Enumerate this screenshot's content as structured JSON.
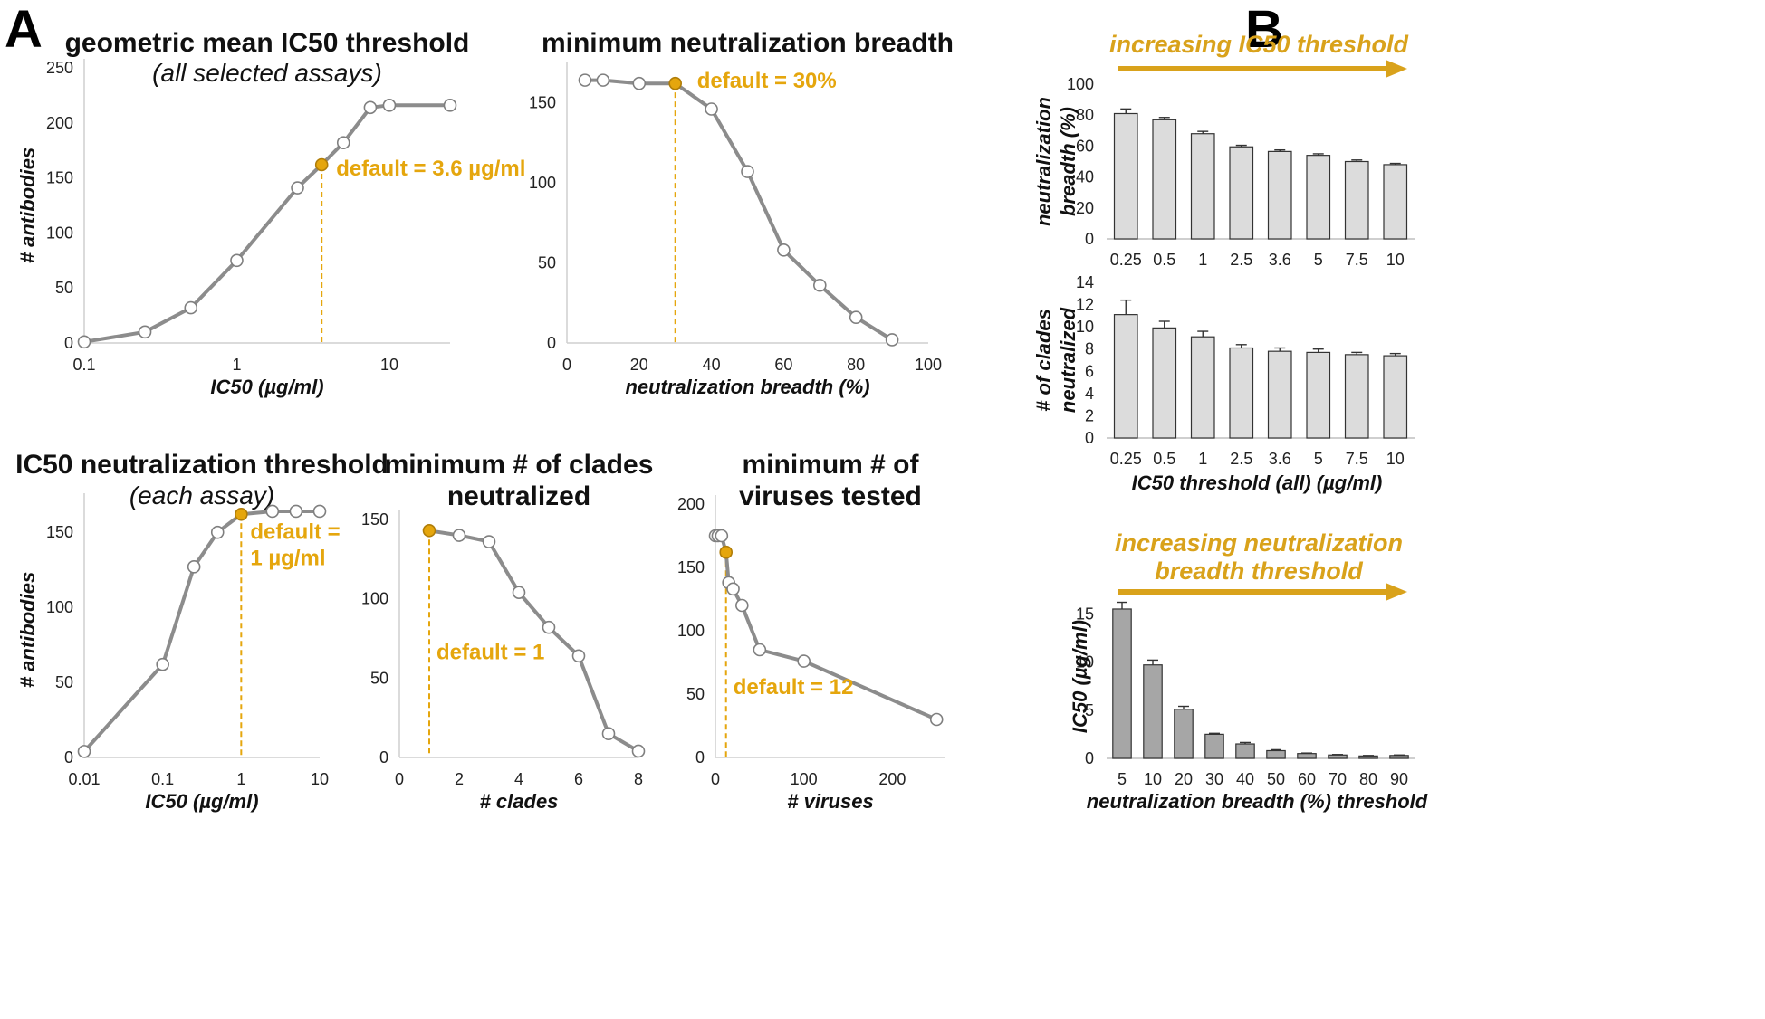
{
  "panel_labels": {
    "a": "A",
    "b": "B"
  },
  "colors": {
    "line": "#8c8c8c",
    "default": "#E5A60D",
    "bar_light": "#dcdcdc",
    "bar_dark": "#a6a6a6",
    "arrow": "#D9A21B"
  },
  "chart_data": [
    {
      "id": "a1",
      "type": "line",
      "scale": "log",
      "title": "geometric mean IC50 threshold",
      "subtitle": "(all selected assays)",
      "xlabel": "IC50 (µg/ml)",
      "ylabel": "# antibodies",
      "xlim": [
        0.1,
        25
      ],
      "ylim": [
        0,
        250
      ],
      "xticks": [
        0.1,
        1,
        10
      ],
      "xtick_labels": [
        "0.1",
        "1",
        "10"
      ],
      "yticks": [
        0,
        50,
        100,
        150,
        200,
        250
      ],
      "ytick_labels": [
        "0",
        "50",
        "100",
        "150",
        "200",
        "250"
      ],
      "x": [
        0.1,
        0.25,
        0.5,
        1,
        2.5,
        3.6,
        5,
        7.5,
        10,
        25
      ],
      "y": [
        1,
        10,
        32,
        75,
        141,
        162,
        182,
        214,
        216,
        216
      ],
      "default_index": 5,
      "default_label": "default = 3.6 µg/ml"
    },
    {
      "id": "a2",
      "type": "line",
      "scale": "linear",
      "title": "minimum neutralization breadth",
      "xlabel": "neutralization breadth (%)",
      "ylabel": "",
      "xlim": [
        0,
        100
      ],
      "ylim": [
        0,
        170
      ],
      "xticks": [
        0,
        20,
        40,
        60,
        80,
        100
      ],
      "xtick_labels": [
        "0",
        "20",
        "40",
        "60",
        "80",
        "100"
      ],
      "yticks": [
        0,
        50,
        100,
        150
      ],
      "ytick_labels": [
        "0",
        "50",
        "100",
        "150"
      ],
      "x": [
        5,
        10,
        20,
        30,
        40,
        50,
        60,
        70,
        80,
        90
      ],
      "y": [
        164,
        164,
        162,
        162,
        146,
        107,
        58,
        36,
        16,
        2
      ],
      "default_index": 3,
      "default_label": "default = 30%"
    },
    {
      "id": "a3",
      "type": "line",
      "scale": "log",
      "title": "IC50 neutralization threshold",
      "subtitle": "(each assay)",
      "xlabel": "IC50 (µg/ml)",
      "ylabel": "# antibodies",
      "xlim": [
        0.01,
        10
      ],
      "ylim": [
        0,
        170
      ],
      "xticks": [
        0.01,
        0.1,
        1,
        10
      ],
      "xtick_labels": [
        "0.01",
        "0.1",
        "1",
        "10"
      ],
      "yticks": [
        0,
        50,
        100,
        150
      ],
      "ytick_labels": [
        "0",
        "50",
        "100",
        "150"
      ],
      "x": [
        0.01,
        0.1,
        0.25,
        0.5,
        1,
        2.5,
        5,
        10
      ],
      "y": [
        4,
        62,
        127,
        150,
        162,
        164,
        164,
        164
      ],
      "default_index": 4,
      "default_label_lines": [
        "default =",
        "1 µg/ml"
      ]
    },
    {
      "id": "a4",
      "type": "line",
      "scale": "linear",
      "title_lines": [
        "minimum # of clades",
        "neutralized"
      ],
      "xlabel": "# clades",
      "ylabel": "",
      "xlim": [
        0,
        8
      ],
      "ylim": [
        0,
        150
      ],
      "xticks": [
        0,
        2,
        4,
        6,
        8
      ],
      "xtick_labels": [
        "0",
        "2",
        "4",
        "6",
        "8"
      ],
      "yticks": [
        0,
        50,
        100,
        150
      ],
      "ytick_labels": [
        "0",
        "50",
        "100",
        "150"
      ],
      "x": [
        1,
        2,
        3,
        4,
        5,
        6,
        7,
        8
      ],
      "y": [
        143,
        140,
        136,
        104,
        82,
        64,
        15,
        4
      ],
      "default_index": 0,
      "default_label": "default = 1"
    },
    {
      "id": "a5",
      "type": "line",
      "scale": "linear",
      "title_lines": [
        "minimum # of",
        "viruses tested"
      ],
      "xlabel": "# viruses",
      "ylabel": "",
      "xlim": [
        0,
        260
      ],
      "ylim": [
        0,
        200
      ],
      "xticks": [
        0,
        100,
        200
      ],
      "xtick_labels": [
        "0",
        "100",
        "200"
      ],
      "yticks": [
        0,
        50,
        100,
        150,
        200
      ],
      "ytick_labels": [
        "0",
        "50",
        "100",
        "150",
        "200"
      ],
      "x": [
        0,
        3,
        7,
        12,
        15,
        20,
        30,
        50,
        100,
        250
      ],
      "y": [
        175,
        175,
        175,
        162,
        138,
        133,
        120,
        85,
        76,
        30
      ],
      "default_index": 3,
      "default_label": "default = 12"
    },
    {
      "id": "b1",
      "type": "bar",
      "arrow_label": "increasing IC50 threshold",
      "ylabel_lines": [
        "neutralization",
        "breadth (%)"
      ],
      "categories": [
        "0.25",
        "0.5",
        "1",
        "2.5",
        "3.6",
        "5",
        "7.5",
        "10"
      ],
      "values": [
        81,
        77,
        68,
        59.5,
        56.5,
        54,
        50,
        48
      ],
      "errors": [
        3,
        1.5,
        1.5,
        1,
        1,
        1,
        1,
        0.8
      ],
      "ylim": [
        0,
        100
      ],
      "yticks": [
        0,
        20,
        40,
        60,
        80,
        100
      ],
      "ytick_labels": [
        "0",
        "20",
        "40",
        "60",
        "80",
        "100"
      ]
    },
    {
      "id": "b2",
      "type": "bar",
      "ylabel_lines": [
        "# of clades",
        "neutralized"
      ],
      "xlabel": "IC50 threshold (all) (µg/ml)",
      "categories": [
        "0.25",
        "0.5",
        "1",
        "2.5",
        "3.6",
        "5",
        "7.5",
        "10"
      ],
      "values": [
        11.1,
        9.9,
        9.1,
        8.1,
        7.8,
        7.7,
        7.5,
        7.4
      ],
      "errors": [
        1.3,
        0.6,
        0.5,
        0.3,
        0.3,
        0.3,
        0.2,
        0.2
      ],
      "ylim": [
        0,
        14
      ],
      "yticks": [
        0,
        2,
        4,
        6,
        8,
        10,
        12,
        14
      ],
      "ytick_labels": [
        "0",
        "2",
        "4",
        "6",
        "8",
        "10",
        "12",
        "14"
      ]
    },
    {
      "id": "b3",
      "type": "bar",
      "arrow_label_lines": [
        "increasing neutralization",
        "breadth threshold"
      ],
      "ylabel": "IC50 (µg/ml)",
      "xlabel": "neutralization breadth (%) threshold",
      "categories": [
        "5",
        "10",
        "20",
        "30",
        "40",
        "50",
        "60",
        "70",
        "80",
        "90"
      ],
      "values": [
        15.5,
        9.7,
        5.1,
        2.5,
        1.5,
        0.8,
        0.5,
        0.35,
        0.25,
        0.3
      ],
      "errors": [
        0.7,
        0.5,
        0.3,
        0.1,
        0.15,
        0.1,
        0.05,
        0.05,
        0.05,
        0.05
      ],
      "ylim": [
        0,
        17
      ],
      "yticks": [
        0,
        5,
        10,
        15
      ],
      "ytick_labels": [
        "0",
        "5",
        "10",
        "15"
      ]
    }
  ]
}
